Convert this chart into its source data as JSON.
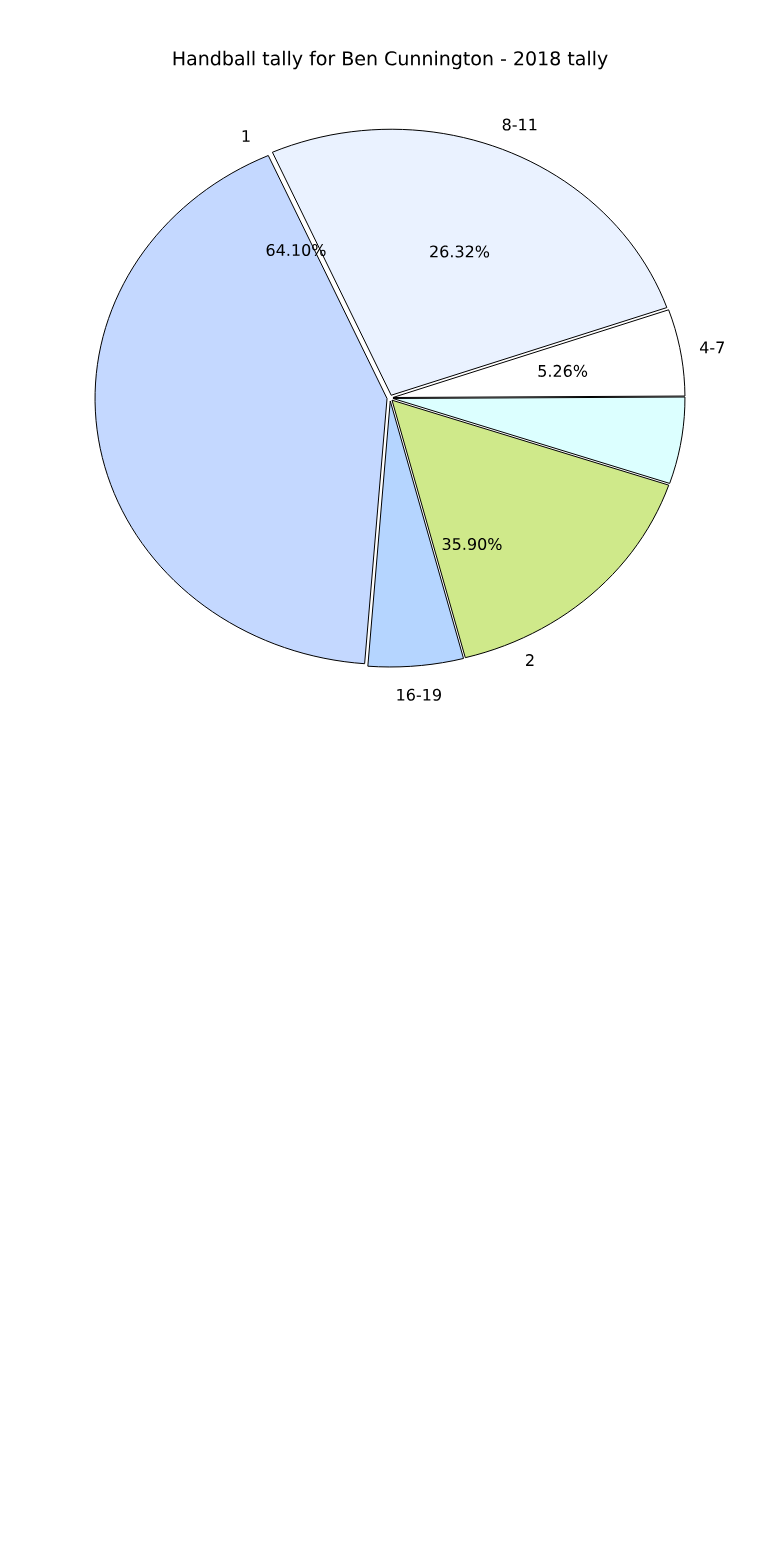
{
  "chart_data": {
    "type": "pie",
    "title": "Handball tally for Ben Cunnington - 2018 tally",
    "categories": [
      "8-11",
      "4-7",
      null,
      null,
      "16-19",
      null
    ],
    "values": [
      26.32,
      5.26,
      5.26,
      15.79,
      5.26,
      42.11
    ],
    "colors": [
      "#eaf2ff",
      "#ffffff",
      "#dcffff",
      "#cfe98a",
      "#b5d5ff",
      "#c4d8ff"
    ],
    "value_labels": [
      "26.32%",
      "5.26%",
      null,
      null,
      null,
      null
    ],
    "annotations": [
      "1",
      "64.10%",
      "2",
      "35.90%"
    ]
  }
}
